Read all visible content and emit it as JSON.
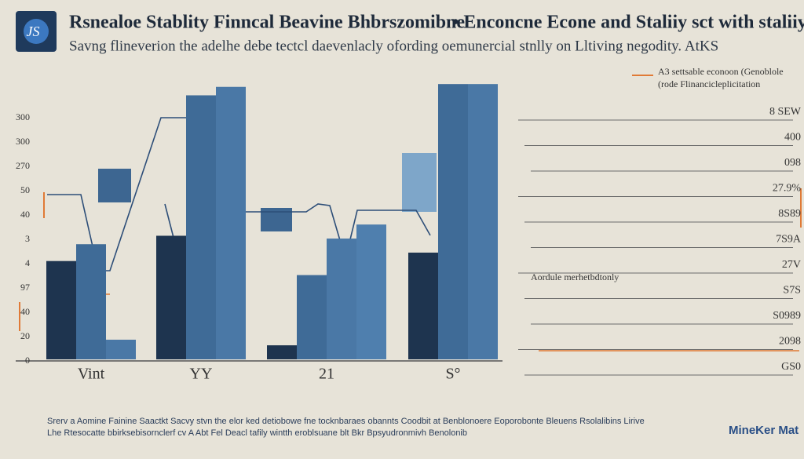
{
  "chart_data": {
    "type": "bar",
    "title": "Rsnealoe Stablity Finncal Beavine Bhbrszomibne",
    "title_right": "• Enconcne Econe and Staliiy sct with staliiy",
    "subtitle": "Savng flineverion the adelhe debe tectcl daevenlacly ofording oemunercial stnlly on Lltiving negodity. AtKS",
    "logo": "JS",
    "annotation": [
      "A3 settsable econoon (Genoblole",
      "(rode Flinancicleplicitation"
    ],
    "note": "Aordule merhetbdtonly",
    "categories": [
      "Vint",
      "YY",
      "21",
      "S°"
    ],
    "series": [
      {
        "color": "#1e344f",
        "values": [
          35,
          44,
          5,
          38
        ]
      },
      {
        "color": "#3f6b97",
        "values": [
          41,
          94,
          30,
          98
        ]
      },
      {
        "color": "#4a78a6",
        "values": [
          7,
          97,
          43,
          98
        ]
      },
      {
        "color": "#4f7fae",
        "values": [
          null,
          null,
          48,
          null
        ]
      }
    ],
    "ylim": [
      0,
      100
    ],
    "left_labels": [
      "300",
      "300",
      "270",
      "50",
      "40",
      "3",
      "4",
      "97",
      "40",
      "20",
      "0"
    ],
    "right_labels": [
      "8 SEW",
      "400",
      "098",
      "27.9%",
      "8S89",
      "7S9A",
      "27V",
      "S7S",
      "S0989",
      "2098",
      "GS0"
    ],
    "footer": [
      "Srerv a Aomine Fainine Saactkt Sacvy stvn the elor ked detiobowe fne tocknbaraes obannts Coodbit at Benblonoere Eoporobonte Bleuens Rsolalibins Lirive",
      "Lhe Rtesocatte bbirksebisornclerf cv A Abt Fel Deacl tafily wintth eroblsuane blt Bkr Bpsyudronmivh Benolonib"
    ],
    "brand": "MineKer Mat"
  }
}
